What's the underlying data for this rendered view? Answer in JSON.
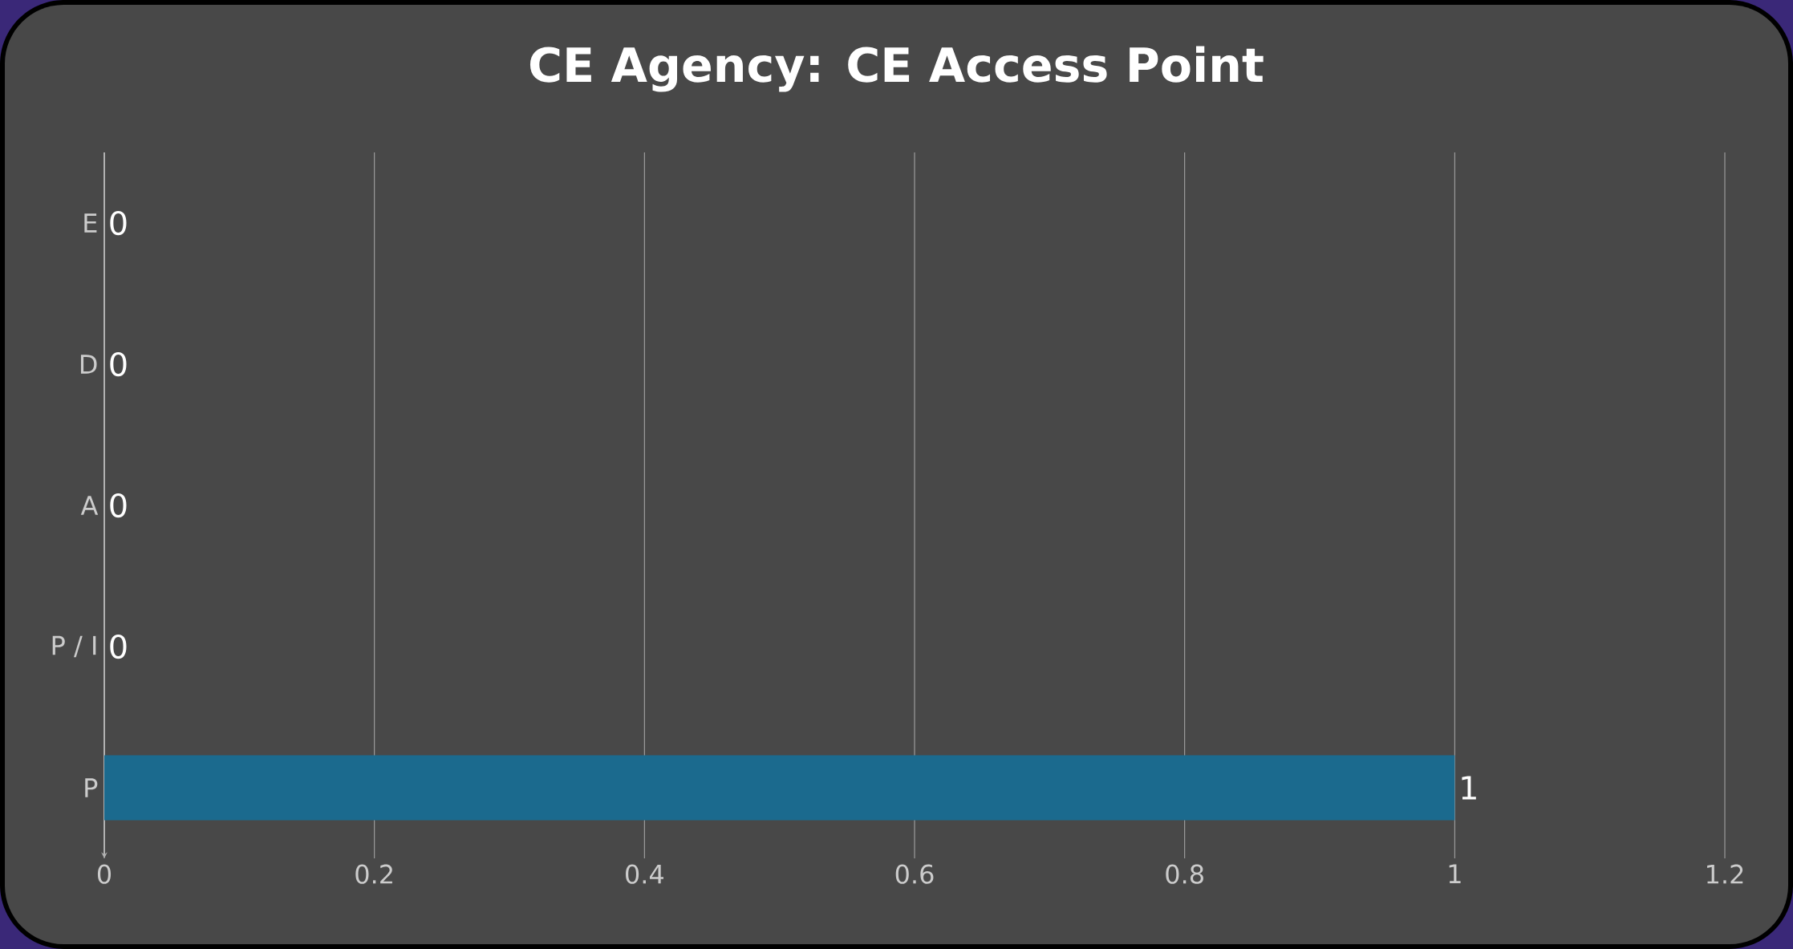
{
  "chart_data": {
    "type": "bar",
    "orientation": "horizontal",
    "title": "CE Agency: CE Access Point",
    "categories": [
      "E",
      "D",
      "A",
      "P / I",
      "P"
    ],
    "values": [
      0,
      0,
      0,
      0,
      1
    ],
    "color": "#1b6a8e",
    "xlim": [
      0,
      1.2
    ],
    "xticks": [
      0,
      0.2,
      0.4,
      0.6,
      0.8,
      1,
      1.2
    ],
    "grid": "x",
    "data_labels": true
  }
}
